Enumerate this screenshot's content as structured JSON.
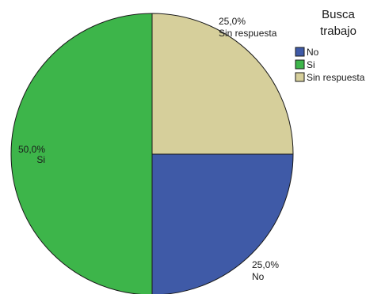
{
  "chart_data": {
    "type": "pie",
    "title": "",
    "legend": {
      "title_lines": [
        "Busca",
        "trabajo"
      ],
      "placement": "top-right"
    },
    "slices": [
      {
        "label": "No",
        "value": 25.0,
        "value_text": "25,0%",
        "color": "#3f5aa7"
      },
      {
        "label": "Si",
        "value": 50.0,
        "value_text": "50,0%",
        "color": "#3db54a"
      },
      {
        "label": "Sin respuesta",
        "value": 25.0,
        "value_text": "25,0%",
        "color": "#d6cf9b"
      }
    ]
  }
}
